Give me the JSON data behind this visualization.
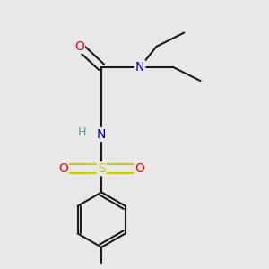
{
  "background_color": "#e8e8e8",
  "bond_color": "#1a1a1a",
  "atom_colors": {
    "O": "#ff0000",
    "N_amide": "#0000cc",
    "N_sulfonamide": "#0000cc",
    "S": "#cccc00",
    "H": "#5a9a8a",
    "C": "#1a1a1a"
  },
  "figsize": [
    3.0,
    3.0
  ],
  "dpi": 100
}
